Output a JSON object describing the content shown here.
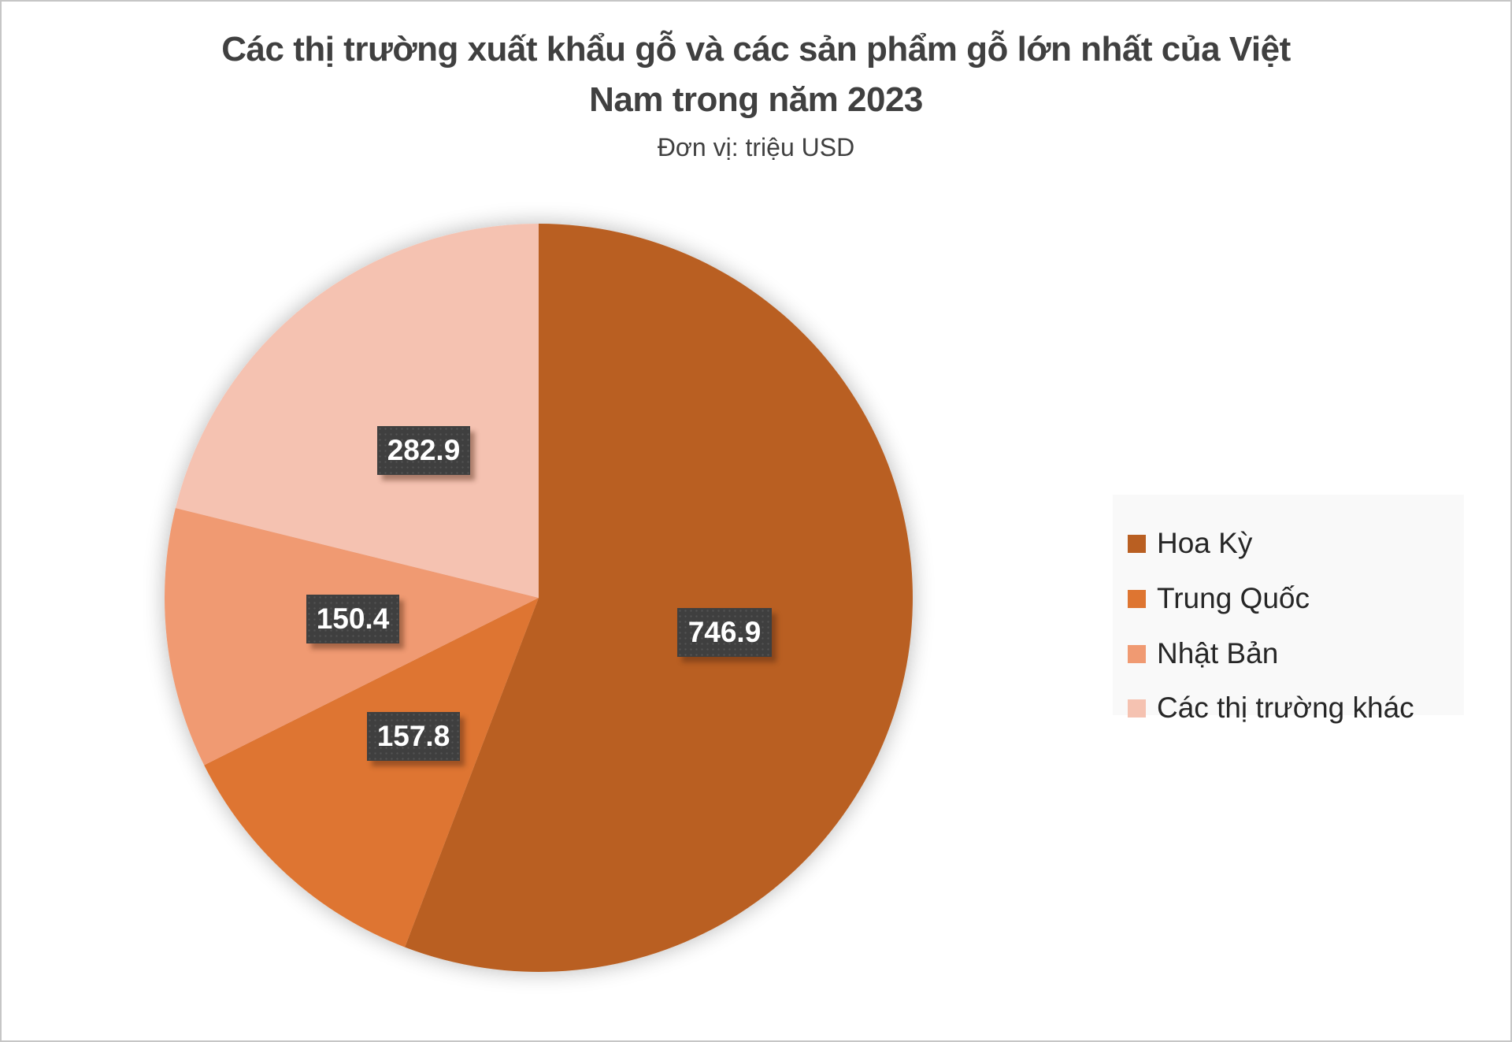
{
  "title": {
    "line1": "Các thị trường xuất khẩu gỗ và các sản phẩm gỗ lớn nhất của Việt",
    "line2": "Nam trong năm 2023"
  },
  "subtitle": "Đơn vị: triệu USD",
  "legend": {
    "items": [
      {
        "label": "Hoa Kỳ",
        "color": "#b95f22"
      },
      {
        "label": "Trung Quốc",
        "color": "#de7531"
      },
      {
        "label": "Nhật Bản",
        "color": "#f09a72"
      },
      {
        "label": "Các thị trường khác",
        "color": "#f5c2b1"
      }
    ]
  },
  "data_labels": [
    "746.9",
    "157.8",
    "150.4",
    "282.9"
  ],
  "chart_data": {
    "type": "pie",
    "title": "Các thị trường xuất khẩu gỗ và các sản phẩm gỗ lớn nhất của Việt Nam trong năm 2023",
    "subtitle": "Đơn vị: triệu USD",
    "categories": [
      "Hoa Kỳ",
      "Trung Quốc",
      "Nhật Bản",
      "Các thị trường khác"
    ],
    "values": [
      746.9,
      157.8,
      150.4,
      282.9
    ],
    "colors": [
      "#b95f22",
      "#de7531",
      "#f09a72",
      "#f5c2b1"
    ],
    "unit": "triệu USD",
    "start_angle_deg": 0,
    "direction": "clockwise",
    "legend_position": "right",
    "data_labels_shown": true
  }
}
